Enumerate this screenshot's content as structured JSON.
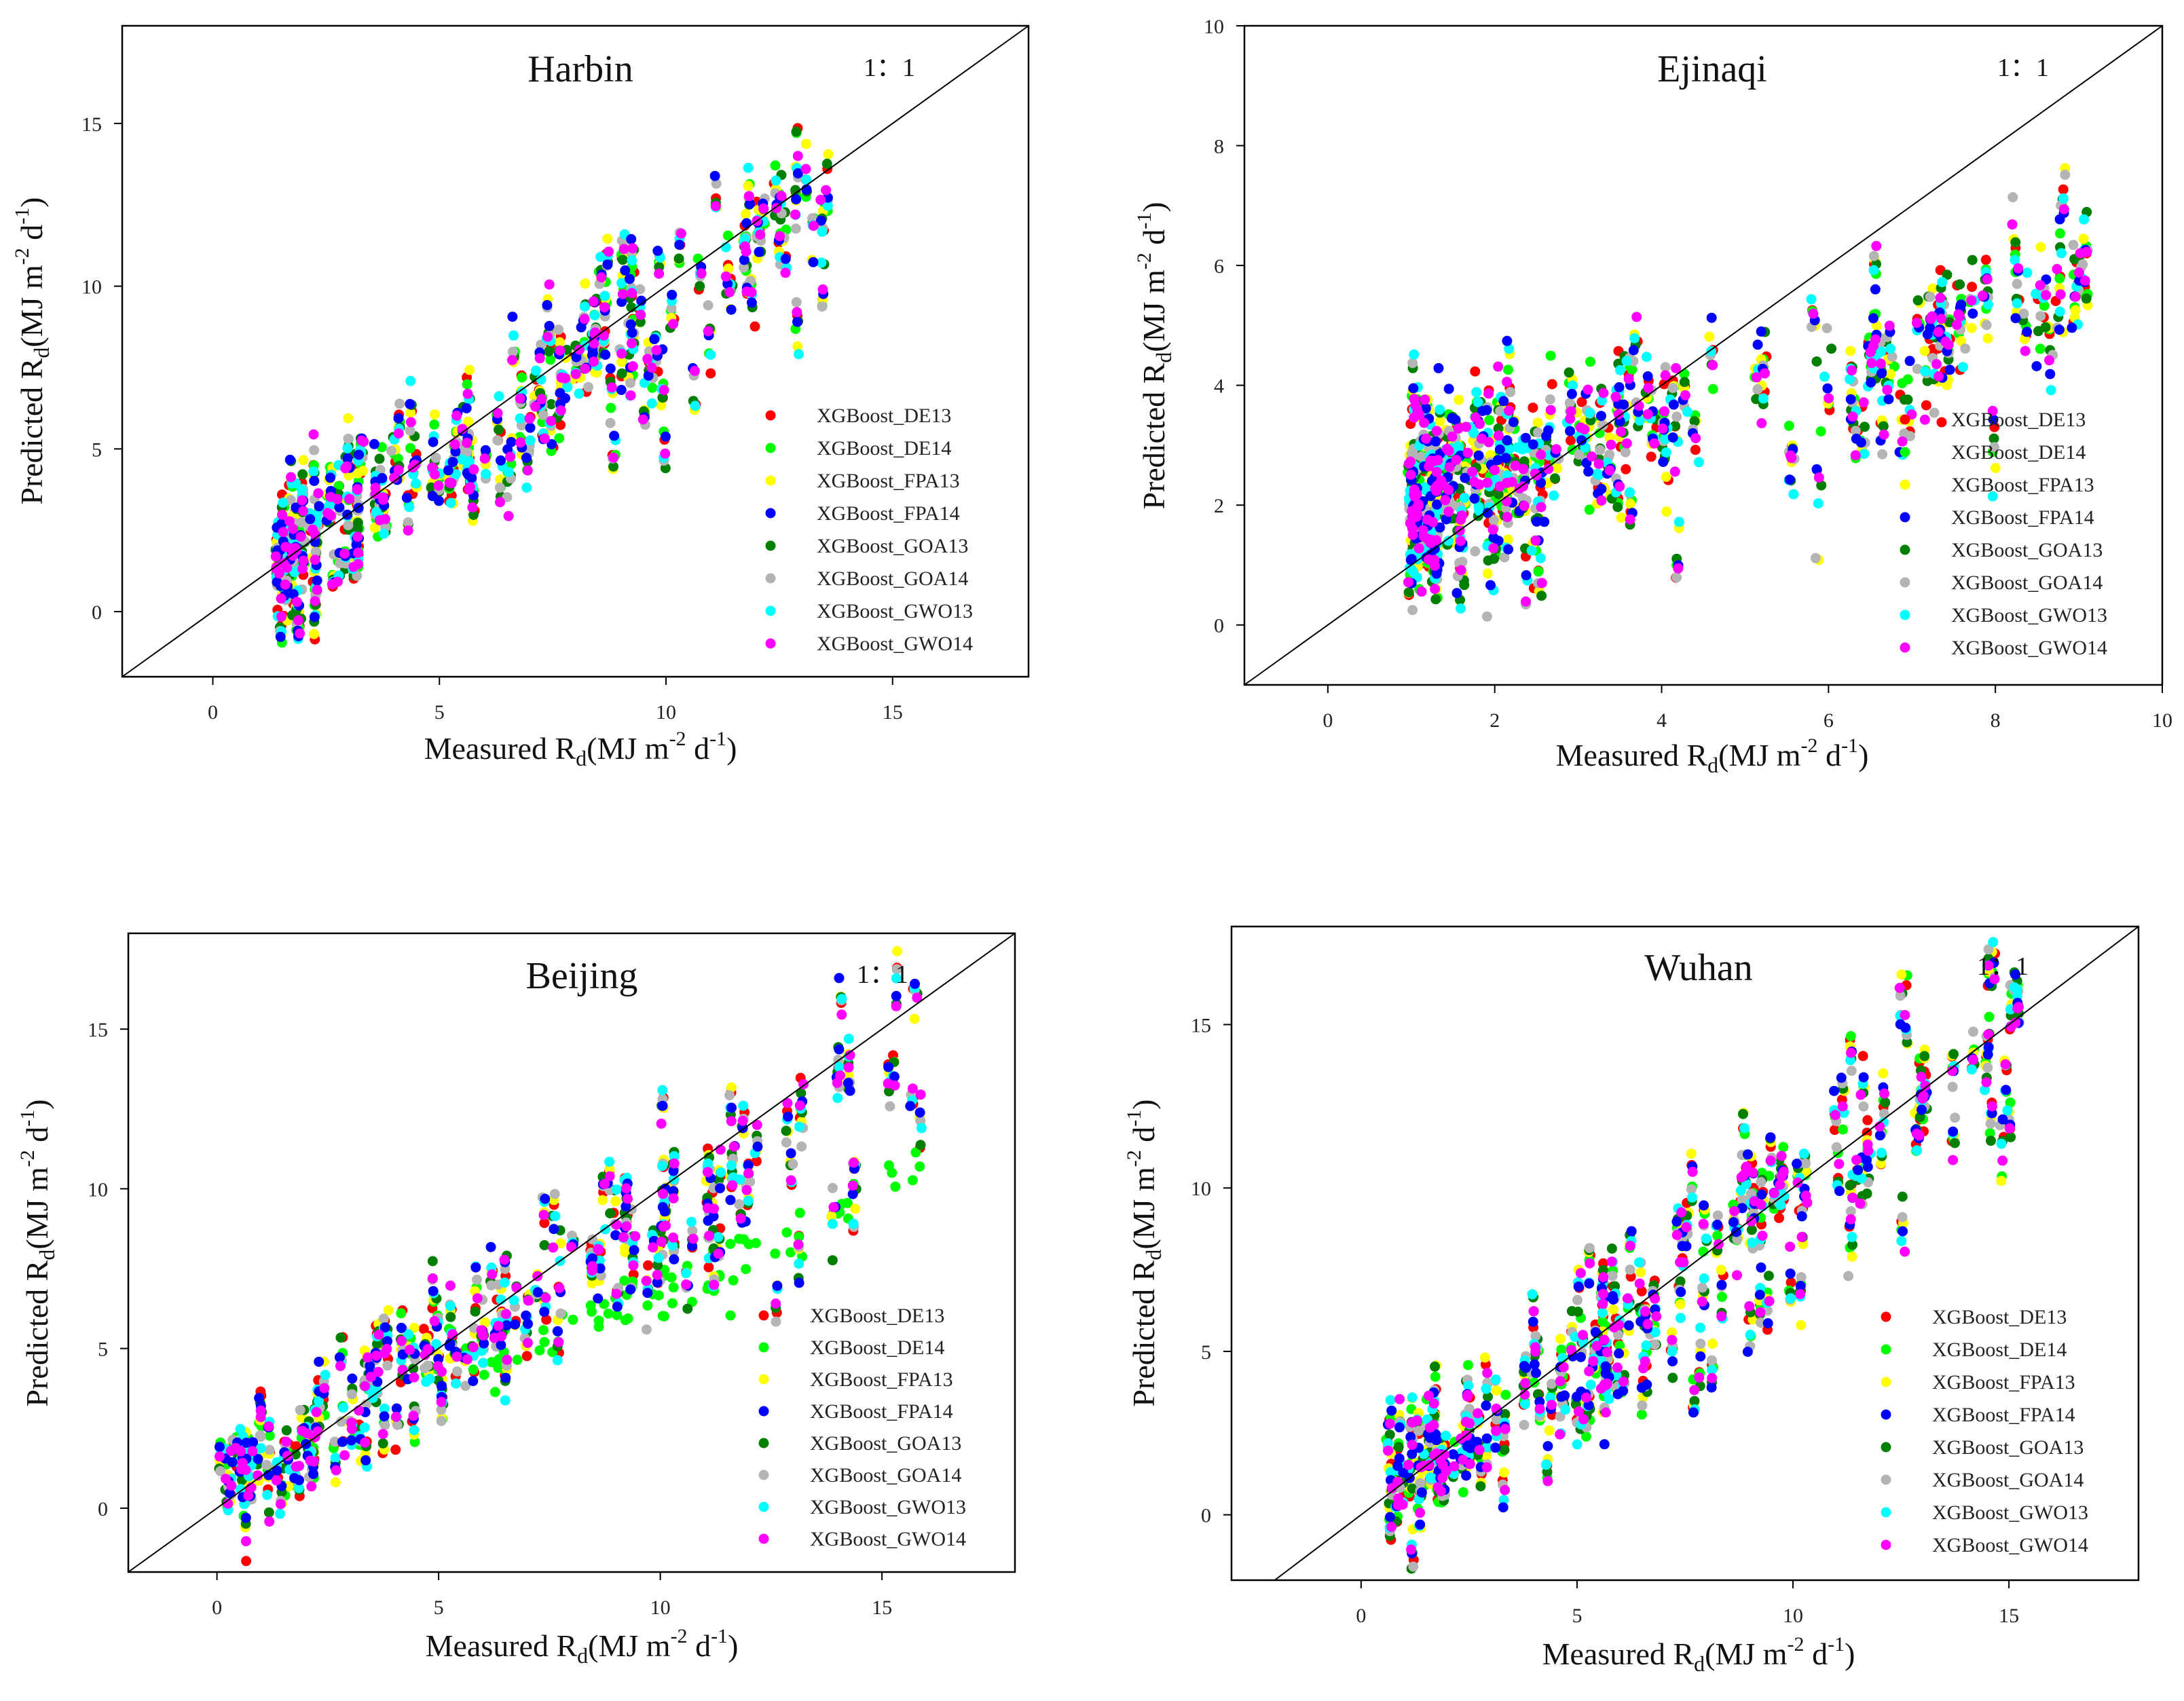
{
  "figure": {
    "description_note": "",
    "legend_series": [
      {
        "name": "XGBoost_DE13",
        "color": "#ff0000"
      },
      {
        "name": "XGBoost_DE14",
        "color": "#00ff00"
      },
      {
        "name": "XGBoost_FPA13",
        "color": "#ffff00"
      },
      {
        "name": "XGBoost_FPA14",
        "color": "#0000ff"
      },
      {
        "name": "XGBoost_GOA13",
        "color": "#007f00"
      },
      {
        "name": "XGBoost_GOA14",
        "color": "#b4b4b4"
      },
      {
        "name": "XGBoost_GWO13",
        "color": "#00ffff"
      },
      {
        "name": "XGBoost_GWO14",
        "color": "#ff00ff"
      }
    ]
  },
  "chart_data": [
    {
      "type": "scatter",
      "title": "Harbin",
      "reference_label": "1：1",
      "xlabel": {
        "main": "Measured R",
        "sub": "d",
        "unit_open": "(MJ m",
        "sup1": "-2",
        "mid": " d",
        "sup2": "-1",
        "unit_close": ")"
      },
      "ylabel": {
        "main": "Predicted R",
        "sub": "d",
        "unit_open": "(MJ m",
        "sup1": "-2",
        "mid": " d",
        "sup2": "-1",
        "unit_close": ")"
      },
      "xlim": [
        -2,
        18
      ],
      "ylim": [
        -2,
        18
      ],
      "xticks": [
        0,
        5,
        10,
        15
      ],
      "yticks": [
        0,
        5,
        10,
        15
      ],
      "xtick_labels": [
        "0",
        "5",
        "10",
        "15"
      ],
      "ytick_labels": [
        "0",
        "5",
        "10",
        "15"
      ],
      "grid": false,
      "legend_position": "bottom-right",
      "series_summary": {
        "x_range": [
          1.3,
          13.9
        ],
        "pattern": "points cluster along the 1:1 line; spread grows at higher values"
      }
    },
    {
      "type": "scatter",
      "title": "Ejinaqi",
      "reference_label": "1：1",
      "xlabel": {
        "main": "Measured R",
        "sub": "d",
        "unit_open": "(MJ m",
        "sup1": "-2",
        "mid": " d",
        "sup2": "-1",
        "unit_close": ")"
      },
      "ylabel": {
        "main": "Predicted R",
        "sub": "d",
        "unit_open": "(MJ m",
        "sup1": "-2",
        "mid": " d",
        "sup2": "-1",
        "unit_close": ")"
      },
      "xlim": [
        -1,
        10
      ],
      "ylim": [
        -1,
        10
      ],
      "xticks": [
        0,
        2,
        4,
        6,
        8,
        10
      ],
      "yticks": [
        0,
        2,
        4,
        6,
        8,
        10
      ],
      "xtick_labels": [
        "0",
        "2",
        "4",
        "6",
        "8",
        "10"
      ],
      "ytick_labels": [
        "0",
        "2",
        "4",
        "6",
        "8",
        "10"
      ],
      "grid": false,
      "legend_position": "bottom-right",
      "series_summary": {
        "x_range": [
          1.0,
          9.1
        ],
        "pattern": "dense cloud between 1 and 4, predictions scattered around 2-5"
      }
    },
    {
      "type": "scatter",
      "title": "Beijing",
      "reference_label": "1：1",
      "xlabel": {
        "main": "Measured R",
        "sub": "d",
        "unit_open": "(MJ m",
        "sup1": "-2",
        "mid": " d",
        "sup2": "-1",
        "unit_close": ")"
      },
      "ylabel": {
        "main": "Predicted R",
        "sub": "d",
        "unit_open": "(MJ m",
        "sup1": "-2",
        "mid": " d",
        "sup2": "-1",
        "unit_close": ")"
      },
      "xlim": [
        -2,
        18
      ],
      "ylim": [
        -2,
        18
      ],
      "xticks": [
        0,
        5,
        10,
        15
      ],
      "yticks": [
        0,
        5,
        10,
        15
      ],
      "xtick_labels": [
        "0",
        "5",
        "10",
        "15"
      ],
      "ytick_labels": [
        "0",
        "5",
        "10",
        "15"
      ],
      "grid": false,
      "legend_position": "bottom-right",
      "series_summary": {
        "x_range": [
          0,
          16
        ],
        "pattern": "DE14 underestimates at high values; others along 1:1"
      }
    },
    {
      "type": "scatter",
      "title": "Wuhan",
      "reference_label": "1：1",
      "xlabel": {
        "main": "Measured R",
        "sub": "d",
        "unit_open": "(MJ m",
        "sup1": "-2",
        "mid": " d",
        "sup2": "-1",
        "unit_close": ")"
      },
      "ylabel": {
        "main": "Predicted R",
        "sub": "d",
        "unit_open": "(MJ m",
        "sup1": "-2",
        "mid": " d",
        "sup2": "-1",
        "unit_close": ")"
      },
      "xlim": [
        -3,
        18
      ],
      "ylim": [
        -2,
        18
      ],
      "xticks": [
        0,
        5,
        10,
        15
      ],
      "yticks": [
        0,
        5,
        10,
        15
      ],
      "xtick_labels": [
        "0",
        "5",
        "10",
        "15"
      ],
      "ytick_labels": [
        "0",
        "5",
        "10",
        "15"
      ],
      "grid": false,
      "legend_position": "bottom-right",
      "series_summary": {
        "x_range": [
          0.6,
          15.2
        ],
        "pattern": "points follow 1:1 line with moderate spread"
      }
    }
  ]
}
